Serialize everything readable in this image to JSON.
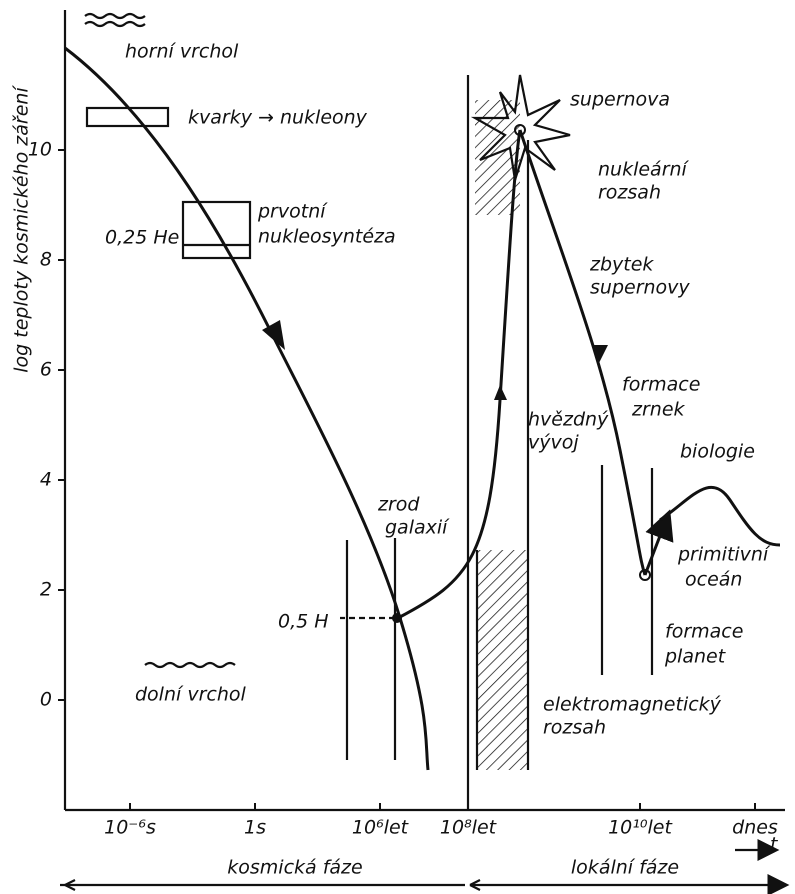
{
  "y_axis": {
    "label": "log teploty kosmického záření",
    "ticks": [
      0,
      2,
      4,
      6,
      8,
      10
    ]
  },
  "x_axis": {
    "ticks": [
      "10⁻⁶s",
      "1s",
      "10⁶let",
      "10⁸let",
      "10¹⁰let",
      "dnes"
    ],
    "label": "t"
  },
  "annotations": {
    "top_peak": "horní vrchol",
    "quarks": "kvarky → nukleony",
    "helium": "0,25 He",
    "nucleosynthesis": [
      "prvotní",
      "nukleosyntéza"
    ],
    "supernova": "supernova",
    "nuclear_range": [
      "nukleární",
      "rozsah"
    ],
    "remnant": [
      "zbytek",
      "supernovy"
    ],
    "grains": [
      "formace",
      "zrnek"
    ],
    "stellar": [
      "hvězdný",
      "vývoj"
    ],
    "biology": "biologie",
    "galaxies": [
      "zrod",
      "galaxií"
    ],
    "hydrogen": "0,5 H",
    "ocean": [
      "primitivní",
      "oceán"
    ],
    "planets": [
      "formace",
      "planet"
    ],
    "bottom_peak": "dolní vrchol",
    "em_range": [
      "elektromagnetický",
      "rozsah"
    ]
  },
  "phases": [
    "kosmická fáze",
    "lokální fáze"
  ]
}
